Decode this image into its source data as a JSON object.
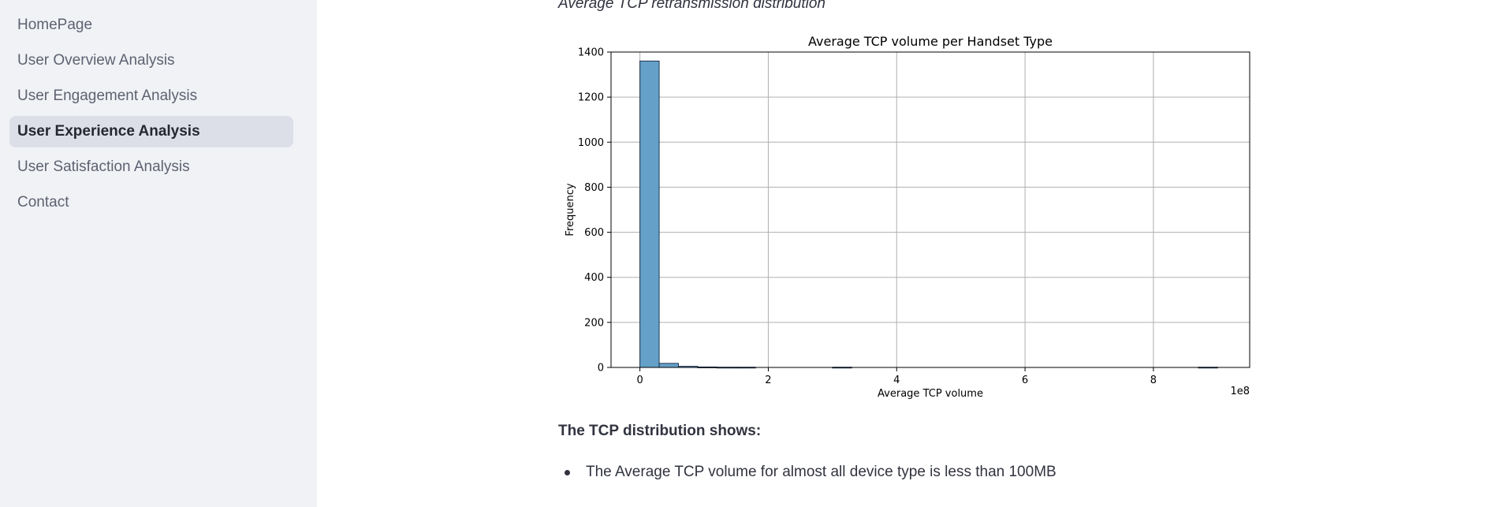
{
  "sidebar": {
    "items": [
      {
        "label": "HomePage",
        "active": false
      },
      {
        "label": "User Overview Analysis",
        "active": false
      },
      {
        "label": "User Engagement Analysis",
        "active": false
      },
      {
        "label": "User Experience Analysis",
        "active": true
      },
      {
        "label": "User Satisfaction Analysis",
        "active": false
      },
      {
        "label": "Contact",
        "active": false
      }
    ]
  },
  "main": {
    "caption": "Average TCP retransmission distribution",
    "summary_heading": "The TCP distribution shows:",
    "bullets": [
      "The Average TCP volume for almost all device type is less than 100MB"
    ]
  },
  "chart_data": {
    "type": "bar",
    "title": "Average TCP volume per Handset Type",
    "xlabel": "Average TCP volume",
    "ylabel": "Frequency",
    "x_offset_label": "1e8",
    "bin_width": 0.3,
    "bin_starts": [
      0.0,
      0.3,
      0.6,
      0.9,
      1.2,
      1.5,
      1.8,
      2.1,
      2.4,
      2.7,
      3.0,
      3.3,
      3.6,
      3.9,
      4.2,
      4.5,
      4.8,
      5.1,
      5.4,
      5.7,
      6.0,
      6.3,
      6.6,
      6.9,
      7.2,
      7.5,
      7.8,
      8.1,
      8.4,
      8.7
    ],
    "values": [
      1360,
      18,
      5,
      2,
      1,
      1,
      0,
      0,
      0,
      0,
      1,
      0,
      0,
      0,
      0,
      0,
      0,
      0,
      0,
      0,
      0,
      0,
      0,
      0,
      0,
      0,
      0,
      0,
      0,
      1
    ],
    "xlim": [
      -0.45,
      9.5
    ],
    "ylim": [
      0,
      1400
    ],
    "xticks": [
      0,
      2,
      4,
      6,
      8
    ],
    "yticks": [
      0,
      200,
      400,
      600,
      800,
      1000,
      1200,
      1400
    ],
    "grid": true,
    "bar_color": "#64a0c8",
    "edge_color": "#1f3550"
  }
}
